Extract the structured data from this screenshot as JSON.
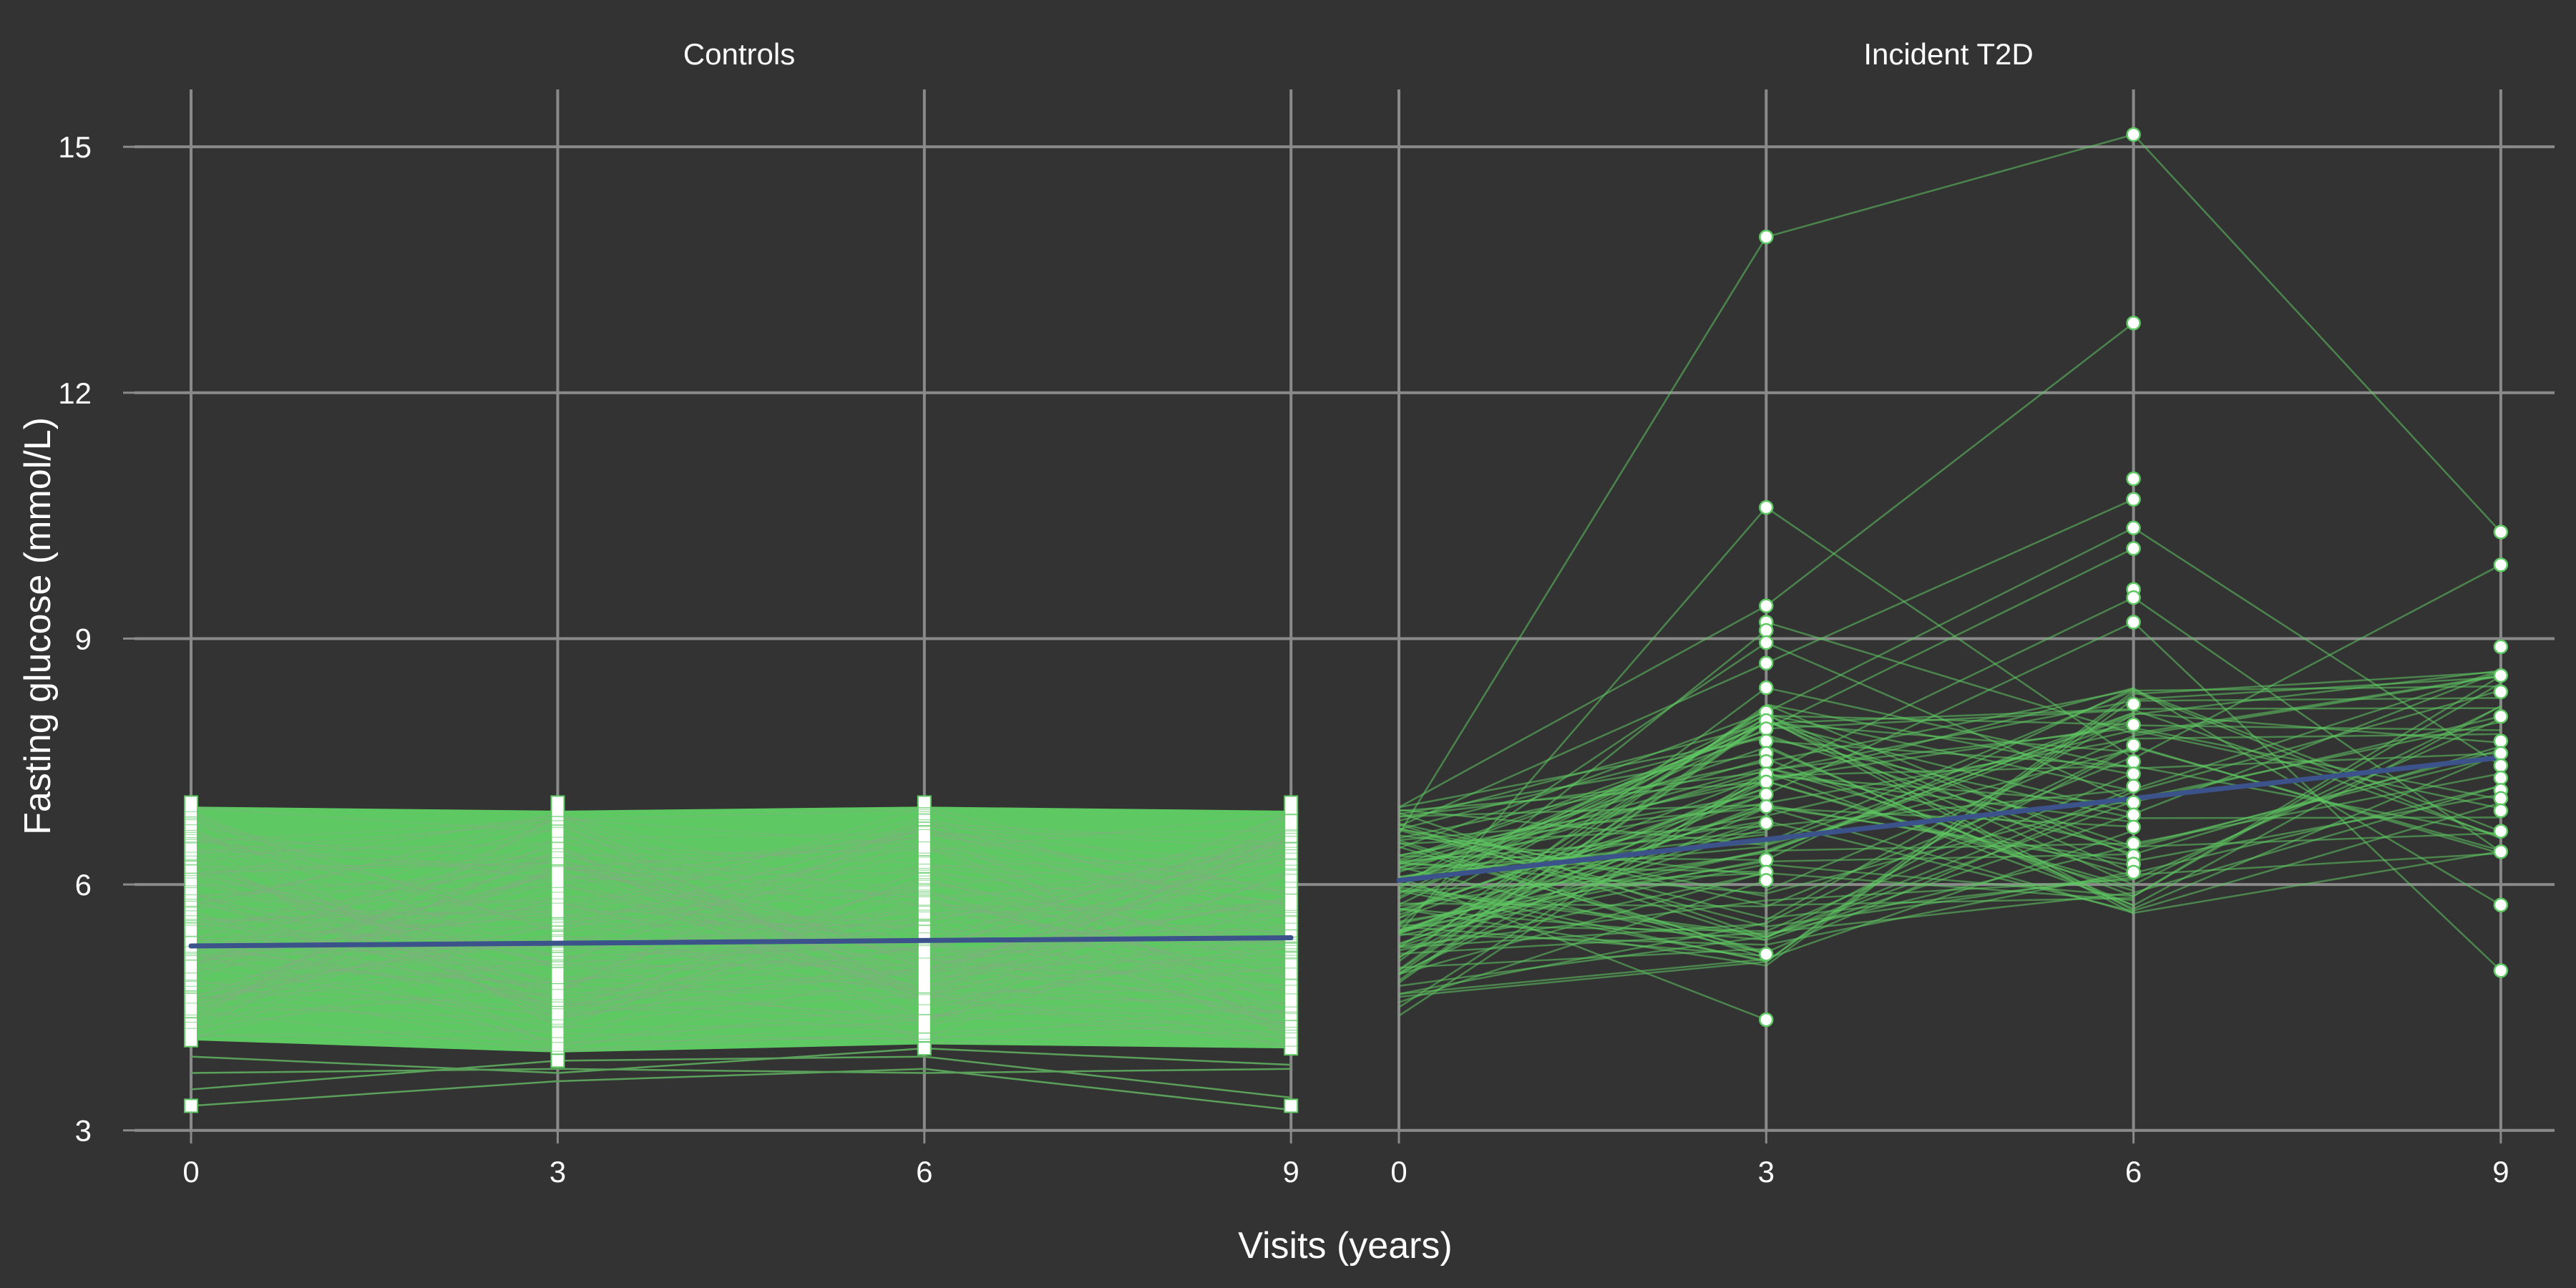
{
  "chart_data": {
    "type": "line",
    "ylabel": "Fasting glucose (mmol/L)",
    "xlabel": "Visits (years)",
    "ylim": [
      2.98,
      15.7
    ],
    "y_ticks": [
      3,
      6,
      9,
      12,
      15
    ],
    "x_ticks": [
      0,
      3,
      6,
      9
    ],
    "xlim": [
      -0.35,
      9.35
    ],
    "grid": true,
    "colors": {
      "background": "#333333",
      "grid": "#8a8a8a",
      "trajectory": "#5ec962",
      "trend": "#3b528b",
      "marker_fill": "#ffffff",
      "marker_edge": "#5ec962"
    },
    "panels": [
      {
        "name": "Controls",
        "marker": "square",
        "band": {
          "x": [
            0,
            3,
            6,
            9
          ],
          "low": [
            4.1,
            3.95,
            4.05,
            4.0
          ],
          "high": [
            6.95,
            6.9,
            6.95,
            6.9
          ],
          "min": [
            3.3,
            3.85,
            4.0,
            3.3
          ],
          "max": [
            7.0,
            7.0,
            7.0,
            7.0
          ]
        },
        "trend": {
          "x": [
            0,
            9
          ],
          "y": [
            5.25,
            5.35
          ]
        },
        "outliers": [
          {
            "x": [
              0,
              3,
              6,
              9
            ],
            "y": [
              3.3,
              3.6,
              3.75,
              3.25
            ]
          },
          {
            "x": [
              0,
              3,
              6,
              9
            ],
            "y": [
              3.5,
              3.85,
              3.9,
              3.4
            ]
          },
          {
            "x": [
              0,
              3,
              6,
              9
            ],
            "y": [
              3.7,
              3.75,
              3.7,
              3.75
            ]
          },
          {
            "x": [
              0,
              3,
              6,
              9
            ],
            "y": [
              3.9,
              3.7,
              4.0,
              3.8
            ]
          }
        ]
      },
      {
        "name": "Incident T2D",
        "marker": "circle",
        "trend": {
          "x": [
            0,
            3,
            6,
            9
          ],
          "y": [
            6.05,
            6.55,
            7.05,
            7.55
          ]
        },
        "points": {
          "x3": [
            13.9,
            10.6,
            9.4,
            9.2,
            9.1,
            8.95,
            8.7,
            8.4,
            8.1,
            8.0,
            7.9,
            7.75,
            7.6,
            7.5,
            7.35,
            7.25,
            7.1,
            6.95,
            6.75,
            6.3,
            6.15,
            6.05,
            5.15,
            4.35
          ],
          "x6": [
            15.15,
            12.85,
            10.95,
            10.7,
            10.35,
            10.1,
            9.6,
            9.5,
            9.2,
            8.2,
            7.95,
            7.7,
            7.5,
            7.35,
            7.2,
            7.0,
            6.85,
            6.7,
            6.5,
            6.35,
            6.25,
            6.15
          ],
          "x9": [
            10.3,
            9.9,
            8.9,
            8.55,
            8.35,
            8.05,
            7.75,
            7.6,
            7.45,
            7.3,
            7.15,
            7.05,
            6.9,
            6.65,
            6.4,
            5.75,
            4.95
          ]
        }
      }
    ]
  }
}
